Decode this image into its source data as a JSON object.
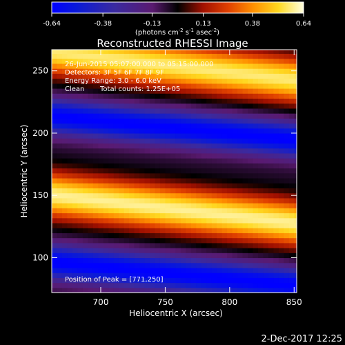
{
  "chart_data": {
    "type": "heatmap",
    "title": "Reconstructed RHESSI Image",
    "xlabel": "Heliocentric X (arcsec)",
    "ylabel": "Heliocentric Y (arcsec)",
    "xlim": [
      662,
      852
    ],
    "ylim": [
      72,
      267
    ],
    "xticks": [
      700,
      750,
      800,
      850
    ],
    "yticks": [
      100,
      150,
      200,
      250
    ],
    "colorbar": {
      "min": -0.64,
      "max": 0.64,
      "ticks": [
        "-0.64",
        "-0.38",
        "-0.13",
        "0.13",
        "0.38",
        "0.64"
      ],
      "unit_prefix": "(photons cm",
      "unit_exp1": "-2",
      "unit_mid": " s",
      "unit_exp2": "-1",
      "unit_mid2": " asec",
      "unit_exp3": "-2",
      "unit_suffix": ")"
    },
    "annotations": {
      "line1": "26-Jun-2015 05:07:00.000 to 05:15:00.000",
      "line2": "Detectors: 3F 5F 6F 7F 8F 9F",
      "line3": "Energy Range: 3.0 - 6.0 keV",
      "line4_method": "Clean",
      "line4_counts": "Total counts: 1.25E+05",
      "peak": "Position of Peak = [771,250]"
    },
    "bands": [
      {
        "name": "top-bright",
        "center_y": 255,
        "slope": -0.12,
        "peak": 0.62
      },
      {
        "name": "upper-dark",
        "center_y": 205,
        "slope": -0.1,
        "peak": -0.6
      },
      {
        "name": "mid-bright",
        "center_y": 140,
        "slope": -0.12,
        "peak": 0.64
      },
      {
        "name": "lower-dark",
        "center_y": 88,
        "slope": -0.1,
        "peak": -0.6
      }
    ],
    "peak_position": [
      771,
      250
    ]
  },
  "footer": {
    "date": "2-Dec-2017 12:25"
  }
}
